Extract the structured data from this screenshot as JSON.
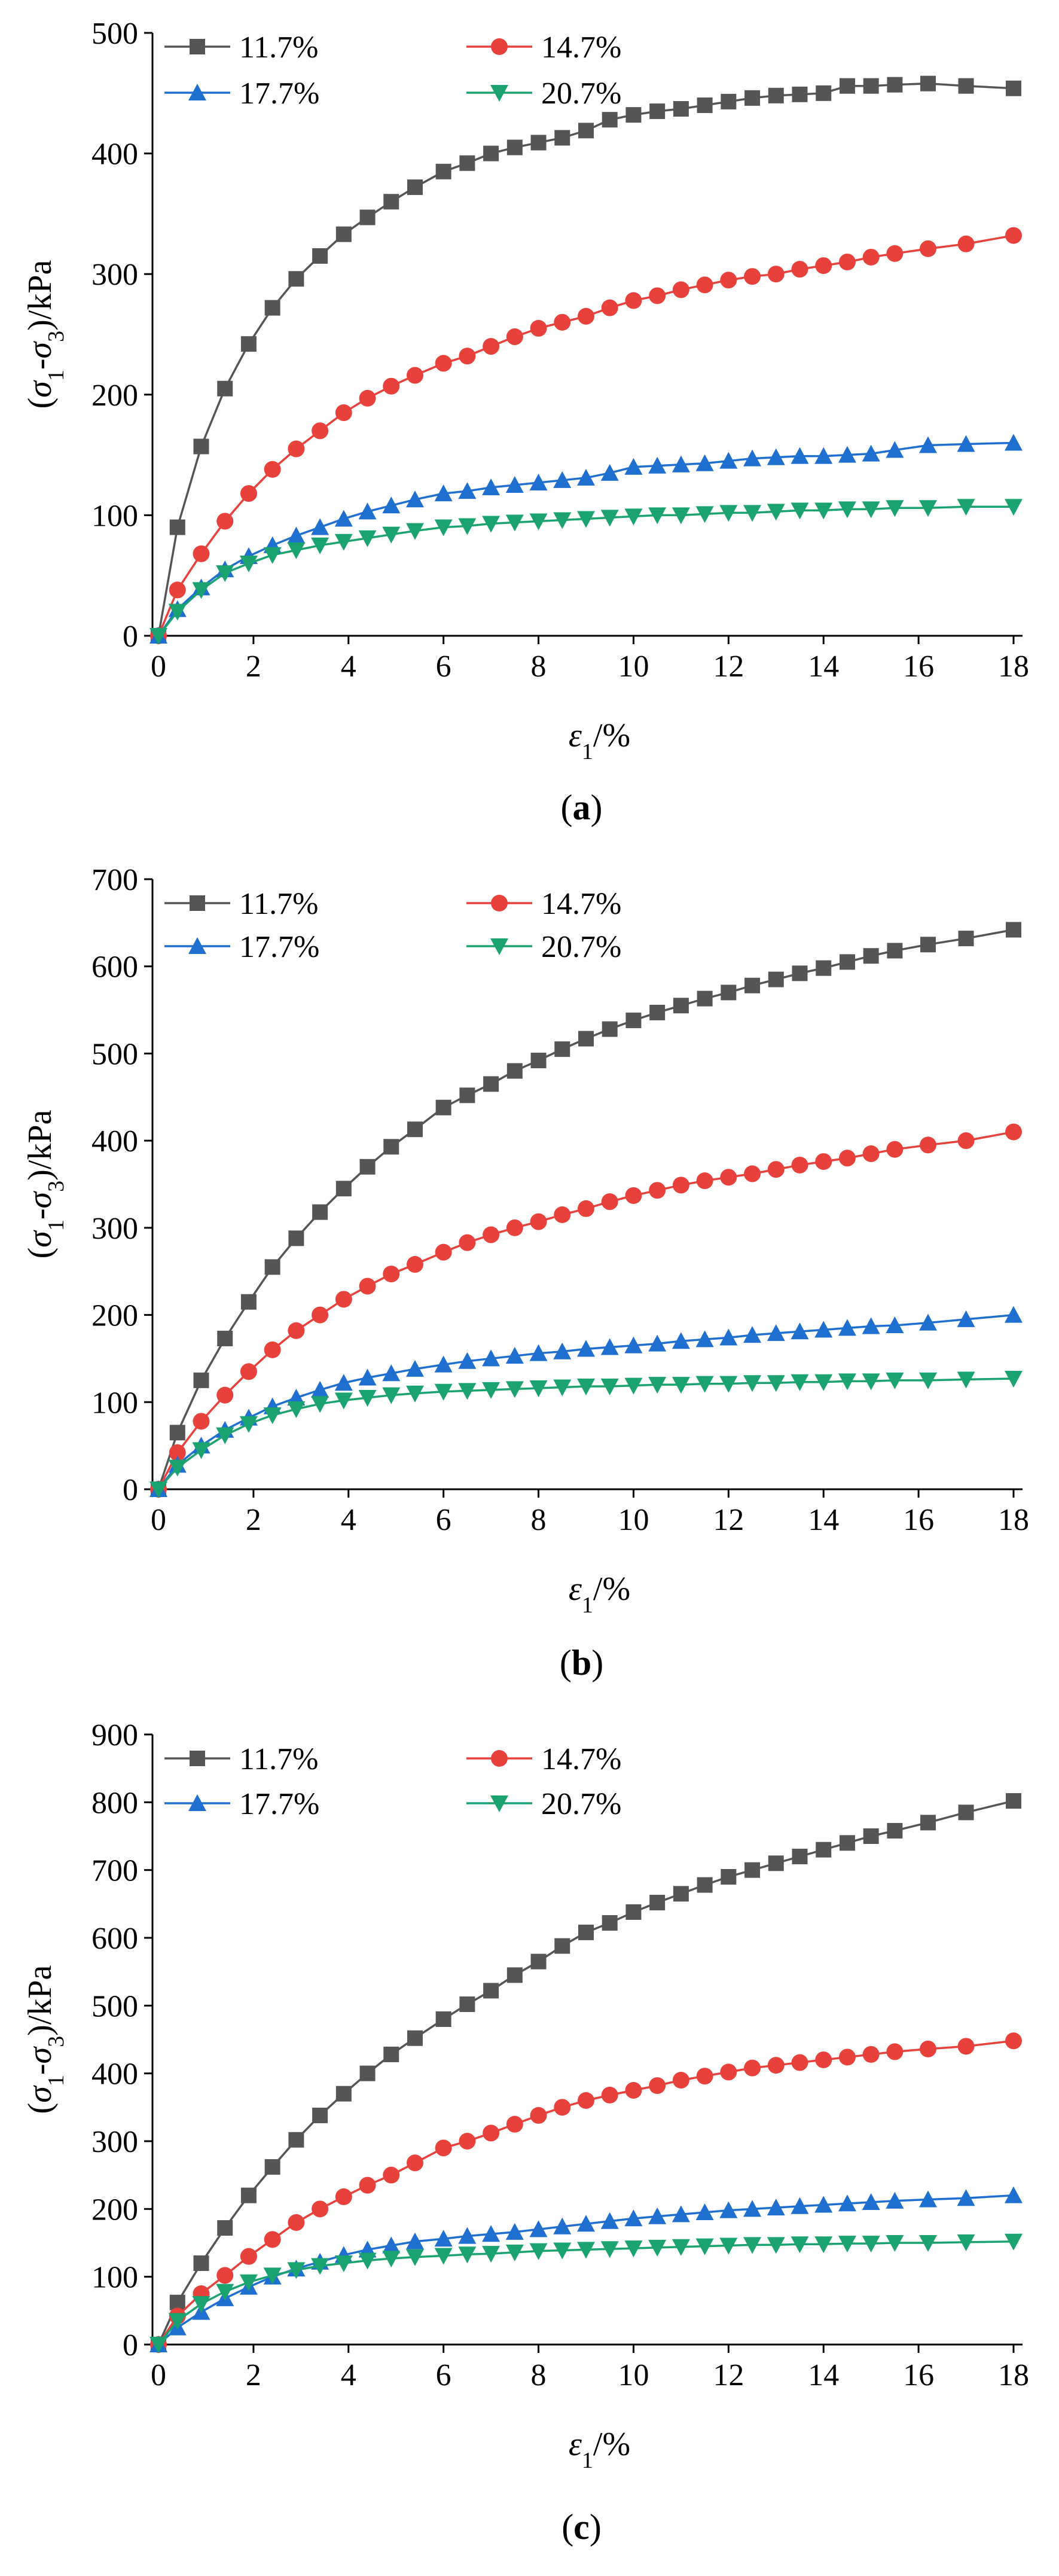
{
  "chart_data": [
    {
      "type": "line",
      "caption": "(a)",
      "xlabel": "ε1/%",
      "ylabel": "(σ1-σ3)/kPa",
      "xlim": [
        0,
        18
      ],
      "ylim": [
        0,
        500
      ],
      "xticks": [
        0,
        2,
        4,
        6,
        8,
        10,
        12,
        14,
        16,
        18
      ],
      "yticks": [
        0,
        100,
        200,
        300,
        400,
        500
      ],
      "legend_position": "top-left",
      "series": [
        {
          "name": "11.7%",
          "color": "#555555",
          "marker": "square",
          "x": [
            0,
            0.4,
            0.9,
            1.4,
            1.9,
            2.4,
            2.9,
            3.4,
            3.9,
            4.4,
            4.9,
            5.4,
            6.0,
            6.5,
            7.0,
            7.5,
            8.0,
            8.5,
            9.0,
            9.5,
            10.0,
            10.5,
            11.0,
            11.5,
            12.0,
            12.5,
            13.0,
            13.5,
            14.0,
            14.5,
            15.0,
            15.5,
            16.2,
            17.0,
            18.0
          ],
          "y": [
            0,
            90,
            157,
            205,
            242,
            272,
            296,
            315,
            333,
            347,
            360,
            372,
            385,
            392,
            400,
            405,
            409,
            413,
            419,
            428,
            432,
            435,
            437,
            440,
            443,
            446,
            448,
            449,
            450,
            456,
            456,
            457,
            458,
            456,
            454
          ]
        },
        {
          "name": "14.7%",
          "color": "#e8403a",
          "marker": "circle",
          "x": [
            0,
            0.4,
            0.9,
            1.4,
            1.9,
            2.4,
            2.9,
            3.4,
            3.9,
            4.4,
            4.9,
            5.4,
            6.0,
            6.5,
            7.0,
            7.5,
            8.0,
            8.5,
            9.0,
            9.5,
            10.0,
            10.5,
            11.0,
            11.5,
            12.0,
            12.5,
            13.0,
            13.5,
            14.0,
            14.5,
            15.0,
            15.5,
            16.2,
            17.0,
            18.0
          ],
          "y": [
            0,
            38,
            68,
            95,
            118,
            138,
            155,
            170,
            185,
            197,
            207,
            216,
            226,
            232,
            240,
            248,
            255,
            260,
            265,
            272,
            278,
            282,
            287,
            291,
            295,
            298,
            300,
            304,
            307,
            310,
            314,
            317,
            321,
            325,
            332
          ]
        },
        {
          "name": "17.7%",
          "color": "#1f6fd1",
          "marker": "triangle-up",
          "x": [
            0,
            0.4,
            0.9,
            1.4,
            1.9,
            2.4,
            2.9,
            3.4,
            3.9,
            4.4,
            4.9,
            5.4,
            6.0,
            6.5,
            7.0,
            7.5,
            8.0,
            8.5,
            9.0,
            9.5,
            10.0,
            10.5,
            11.0,
            11.5,
            12.0,
            12.5,
            13.0,
            13.5,
            14.0,
            14.5,
            15.0,
            15.5,
            16.2,
            17.0,
            18.0
          ],
          "y": [
            0,
            22,
            40,
            55,
            66,
            75,
            83,
            90,
            97,
            103,
            108,
            113,
            118,
            120,
            123,
            125,
            127,
            129,
            131,
            135,
            140,
            141,
            142,
            143,
            145,
            147,
            148,
            149,
            149,
            150,
            151,
            154,
            158,
            159,
            160
          ]
        },
        {
          "name": "20.7%",
          "color": "#1aa370",
          "marker": "triangle-down",
          "x": [
            0,
            0.4,
            0.9,
            1.4,
            1.9,
            2.4,
            2.9,
            3.4,
            3.9,
            4.4,
            4.9,
            5.4,
            6.0,
            6.5,
            7.0,
            7.5,
            8.0,
            8.5,
            9.0,
            9.5,
            10.0,
            10.5,
            11.0,
            11.5,
            12.0,
            12.5,
            13.0,
            13.5,
            14.0,
            14.5,
            15.0,
            15.5,
            16.2,
            17.0,
            18.0
          ],
          "y": [
            0,
            20,
            38,
            52,
            60,
            67,
            71,
            75,
            78,
            81,
            84,
            87,
            90,
            91,
            93,
            94,
            95,
            96,
            97,
            98,
            99,
            100,
            100,
            101,
            102,
            102,
            103,
            104,
            104,
            105,
            105,
            106,
            106,
            107,
            107
          ]
        }
      ]
    },
    {
      "type": "line",
      "caption": "(b)",
      "xlabel": "ε1/%",
      "ylabel": "(σ1-σ3)/kPa",
      "xlim": [
        0,
        18
      ],
      "ylim": [
        0,
        700
      ],
      "xticks": [
        0,
        2,
        4,
        6,
        8,
        10,
        12,
        14,
        16,
        18
      ],
      "yticks": [
        0,
        100,
        200,
        300,
        400,
        500,
        600,
        700
      ],
      "legend_position": "top-left",
      "series": [
        {
          "name": "11.7%",
          "color": "#555555",
          "marker": "square",
          "x": [
            0,
            0.4,
            0.9,
            1.4,
            1.9,
            2.4,
            2.9,
            3.4,
            3.9,
            4.4,
            4.9,
            5.4,
            6.0,
            6.5,
            7.0,
            7.5,
            8.0,
            8.5,
            9.0,
            9.5,
            10.0,
            10.5,
            11.0,
            11.5,
            12.0,
            12.5,
            13.0,
            13.5,
            14.0,
            14.5,
            15.0,
            15.5,
            16.2,
            17.0,
            18.0
          ],
          "y": [
            0,
            65,
            125,
            173,
            215,
            255,
            288,
            318,
            345,
            370,
            393,
            413,
            438,
            452,
            465,
            480,
            492,
            505,
            517,
            528,
            538,
            547,
            555,
            563,
            570,
            578,
            585,
            592,
            598,
            605,
            612,
            618,
            625,
            632,
            642
          ]
        },
        {
          "name": "14.7%",
          "color": "#e8403a",
          "marker": "circle",
          "x": [
            0,
            0.4,
            0.9,
            1.4,
            1.9,
            2.4,
            2.9,
            3.4,
            3.9,
            4.4,
            4.9,
            5.4,
            6.0,
            6.5,
            7.0,
            7.5,
            8.0,
            8.5,
            9.0,
            9.5,
            10.0,
            10.5,
            11.0,
            11.5,
            12.0,
            12.5,
            13.0,
            13.5,
            14.0,
            14.5,
            15.0,
            15.5,
            16.2,
            17.0,
            18.0
          ],
          "y": [
            0,
            42,
            78,
            108,
            135,
            160,
            182,
            200,
            218,
            233,
            247,
            258,
            272,
            283,
            292,
            300,
            307,
            315,
            322,
            330,
            337,
            343,
            349,
            354,
            358,
            362,
            367,
            372,
            376,
            380,
            385,
            390,
            395,
            400,
            410
          ]
        },
        {
          "name": "17.7%",
          "color": "#1f6fd1",
          "marker": "triangle-up",
          "x": [
            0,
            0.4,
            0.9,
            1.4,
            1.9,
            2.4,
            2.9,
            3.4,
            3.9,
            4.4,
            4.9,
            5.4,
            6.0,
            6.5,
            7.0,
            7.5,
            8.0,
            8.5,
            9.0,
            9.5,
            10.0,
            10.5,
            11.0,
            11.5,
            12.0,
            12.5,
            13.0,
            13.5,
            14.0,
            14.5,
            15.0,
            15.5,
            16.2,
            17.0,
            18.0
          ],
          "y": [
            0,
            28,
            50,
            68,
            82,
            95,
            105,
            114,
            122,
            128,
            133,
            138,
            143,
            147,
            150,
            153,
            156,
            158,
            161,
            163,
            165,
            167,
            170,
            172,
            174,
            177,
            179,
            181,
            183,
            185,
            187,
            188,
            191,
            195,
            200
          ]
        },
        {
          "name": "20.7%",
          "color": "#1aa370",
          "marker": "triangle-down",
          "x": [
            0,
            0.4,
            0.9,
            1.4,
            1.9,
            2.4,
            2.9,
            3.4,
            3.9,
            4.4,
            4.9,
            5.4,
            6.0,
            6.5,
            7.0,
            7.5,
            8.0,
            8.5,
            9.0,
            9.5,
            10.0,
            10.5,
            11.0,
            11.5,
            12.0,
            12.5,
            13.0,
            13.5,
            14.0,
            14.5,
            15.0,
            15.5,
            16.2,
            17.0,
            18.0
          ],
          "y": [
            0,
            25,
            45,
            62,
            75,
            85,
            92,
            98,
            102,
            105,
            108,
            110,
            112,
            113,
            114,
            115,
            116,
            117,
            118,
            118,
            119,
            120,
            120,
            121,
            121,
            122,
            122,
            123,
            123,
            124,
            124,
            125,
            125,
            126,
            127
          ]
        }
      ]
    },
    {
      "type": "line",
      "caption": "(c)",
      "xlabel": "ε1/%",
      "ylabel": "(σ1-σ3)/kPa",
      "xlim": [
        0,
        18
      ],
      "ylim": [
        0,
        900
      ],
      "xticks": [
        0,
        2,
        4,
        6,
        8,
        10,
        12,
        14,
        16,
        18
      ],
      "yticks": [
        0,
        100,
        200,
        300,
        400,
        500,
        600,
        700,
        800,
        900
      ],
      "legend_position": "top-left",
      "series": [
        {
          "name": "11.7%",
          "color": "#555555",
          "marker": "square",
          "x": [
            0,
            0.4,
            0.9,
            1.4,
            1.9,
            2.4,
            2.9,
            3.4,
            3.9,
            4.4,
            4.9,
            5.4,
            6.0,
            6.5,
            7.0,
            7.5,
            8.0,
            8.5,
            9.0,
            9.5,
            10.0,
            10.5,
            11.0,
            11.5,
            12.0,
            12.5,
            13.0,
            13.5,
            14.0,
            14.5,
            15.0,
            15.5,
            16.2,
            17.0,
            18.0
          ],
          "y": [
            0,
            62,
            120,
            172,
            220,
            262,
            302,
            338,
            370,
            400,
            428,
            452,
            480,
            502,
            522,
            545,
            565,
            588,
            608,
            622,
            638,
            652,
            665,
            678,
            690,
            700,
            710,
            720,
            730,
            740,
            750,
            758,
            770,
            785,
            802
          ]
        },
        {
          "name": "14.7%",
          "color": "#e8403a",
          "marker": "circle",
          "x": [
            0,
            0.4,
            0.9,
            1.4,
            1.9,
            2.4,
            2.9,
            3.4,
            3.9,
            4.4,
            4.9,
            5.4,
            6.0,
            6.5,
            7.0,
            7.5,
            8.0,
            8.5,
            9.0,
            9.5,
            10.0,
            10.5,
            11.0,
            11.5,
            12.0,
            12.5,
            13.0,
            13.5,
            14.0,
            14.5,
            15.0,
            15.5,
            16.2,
            17.0,
            18.0
          ],
          "y": [
            0,
            42,
            75,
            102,
            130,
            155,
            180,
            200,
            218,
            235,
            250,
            268,
            290,
            300,
            312,
            325,
            338,
            350,
            360,
            368,
            375,
            382,
            390,
            396,
            402,
            408,
            412,
            416,
            420,
            424,
            428,
            432,
            436,
            440,
            448
          ]
        },
        {
          "name": "17.7%",
          "color": "#1f6fd1",
          "marker": "triangle-up",
          "x": [
            0,
            0.4,
            0.9,
            1.4,
            1.9,
            2.4,
            2.9,
            3.4,
            3.9,
            4.4,
            4.9,
            5.4,
            6.0,
            6.5,
            7.0,
            7.5,
            8.0,
            8.5,
            9.0,
            9.5,
            10.0,
            10.5,
            11.0,
            11.5,
            12.0,
            12.5,
            13.0,
            13.5,
            14.0,
            14.5,
            15.0,
            15.5,
            16.2,
            17.0,
            18.0
          ],
          "y": [
            0,
            25,
            48,
            68,
            85,
            100,
            112,
            122,
            132,
            140,
            146,
            152,
            156,
            160,
            163,
            166,
            170,
            174,
            178,
            182,
            186,
            189,
            192,
            195,
            198,
            200,
            202,
            204,
            206,
            208,
            210,
            212,
            214,
            216,
            220
          ]
        },
        {
          "name": "20.7%",
          "color": "#1aa370",
          "marker": "triangle-down",
          "x": [
            0,
            0.4,
            0.9,
            1.4,
            1.9,
            2.4,
            2.9,
            3.4,
            3.9,
            4.4,
            4.9,
            5.4,
            6.0,
            6.5,
            7.0,
            7.5,
            8.0,
            8.5,
            9.0,
            9.5,
            10.0,
            10.5,
            11.0,
            11.5,
            12.0,
            12.5,
            13.0,
            13.5,
            14.0,
            14.5,
            15.0,
            15.5,
            16.2,
            17.0,
            18.0
          ],
          "y": [
            0,
            35,
            60,
            78,
            92,
            102,
            110,
            116,
            120,
            124,
            127,
            129,
            131,
            133,
            134,
            136,
            138,
            139,
            140,
            141,
            142,
            143,
            144,
            145,
            146,
            147,
            147,
            148,
            148,
            149,
            149,
            150,
            150,
            151,
            152
          ]
        }
      ]
    }
  ]
}
